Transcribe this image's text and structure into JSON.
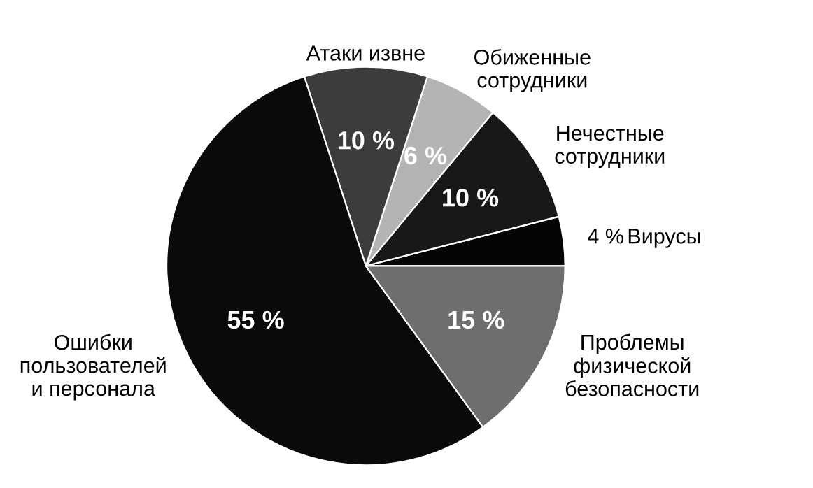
{
  "chart_data": {
    "type": "pie",
    "categories": [
      "Вирусы",
      "Нечестные\nсотрудники",
      "Обиженные\nсотрудники",
      "Атаки извне",
      "Ошибки\nпользователей\nи персонала",
      "Проблемы\nфизической\nбезопасности"
    ],
    "values": [
      4,
      10,
      6,
      10,
      55,
      15
    ],
    "colors": [
      "#050505",
      "#181818",
      "#b4b4b4",
      "#3c3c3c",
      "#0a0a0a",
      "#6e6e6e"
    ],
    "value_labels": [
      "4 %",
      "10 %",
      "6 %",
      "10 %",
      "55 %",
      "15 %"
    ]
  }
}
